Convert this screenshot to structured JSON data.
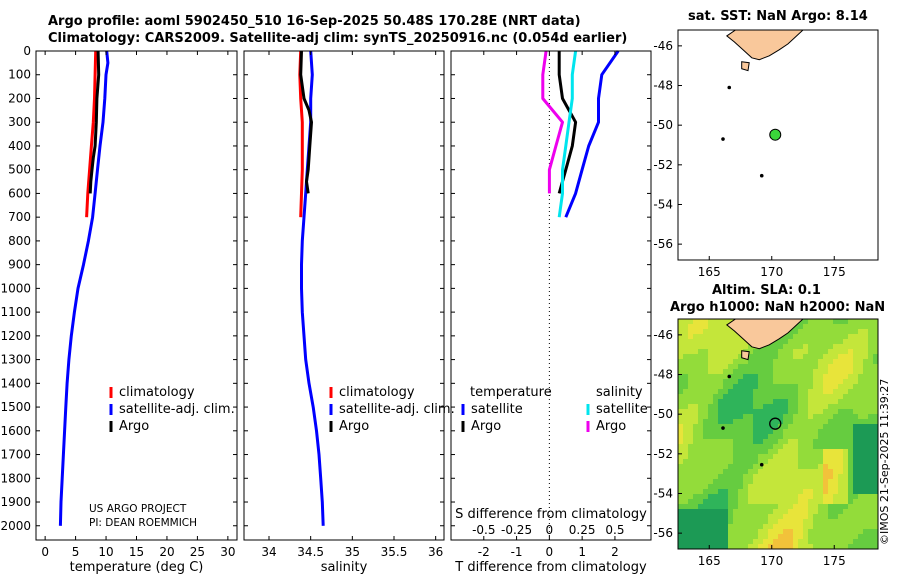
{
  "titles": {
    "line1": "Argo profile: aoml 5902450_510 16-Sep-2025 50.48S 170.28E (NRT data)",
    "line2": "Climatology: CARS2009. Satellite-adj clim: synTS_20250916.nc (0.054d earlier)",
    "map_sst": "sat. SST: NaN Argo: 8.14",
    "map_alt1": "Altim. SLA: 0.1",
    "map_alt2": "Argo h1000: NaN h2000: NaN"
  },
  "timestamp": "©IMOS 21-Sep-2025 11:39:27",
  "credits": {
    "line1": "US ARGO PROJECT",
    "line2": "PI: DEAN ROEMMICH"
  },
  "legends": {
    "temperature": [
      "climatology",
      "satellite-adj. clim.",
      "Argo"
    ],
    "salinity": [
      "climatology",
      "satellite-adj. clim.",
      "Argo"
    ],
    "difference": {
      "temp_header": "temperature",
      "sal_header": "salinity",
      "temp_items": [
        "satellite",
        "Argo"
      ],
      "sal_items": [
        "satellite",
        "Argo"
      ]
    }
  },
  "colors": {
    "climatology": "#ff0000",
    "satellite": "#0000ff",
    "argo": "#000000",
    "s_satellite": "#00e5ee",
    "s_argo": "#ee00ee",
    "land": "#f9c89b",
    "marker": "#3ad63a"
  },
  "chart_data": [
    {
      "type": "line",
      "name": "temperature",
      "xlabel": "temperature (deg C)",
      "xlim": [
        -1.5,
        31.5
      ],
      "xticks": [
        0,
        5,
        10,
        15,
        20,
        25,
        30
      ],
      "ylim": [
        2060,
        0
      ],
      "yticks": [
        0,
        100,
        200,
        300,
        400,
        500,
        600,
        700,
        800,
        900,
        1000,
        1100,
        1200,
        1300,
        1400,
        1500,
        1600,
        1700,
        1800,
        1900,
        2000
      ],
      "series": [
        {
          "name": "climatology",
          "color": "#ff0000",
          "points": [
            [
              8.3,
              0
            ],
            [
              8.2,
              100
            ],
            [
              8.1,
              200
            ],
            [
              7.9,
              300
            ],
            [
              7.6,
              400
            ],
            [
              7.3,
              500
            ],
            [
              7.0,
              600
            ],
            [
              6.9,
              650
            ],
            [
              6.8,
              700
            ]
          ]
        },
        {
          "name": "satellite-adj. clim.",
          "color": "#0000ff",
          "points": [
            [
              10.1,
              0
            ],
            [
              10.3,
              50
            ],
            [
              10.0,
              100
            ],
            [
              9.8,
              200
            ],
            [
              9.5,
              300
            ],
            [
              9.0,
              400
            ],
            [
              8.6,
              500
            ],
            [
              8.2,
              600
            ],
            [
              7.8,
              700
            ],
            [
              7.1,
              800
            ],
            [
              6.3,
              900
            ],
            [
              5.4,
              1000
            ],
            [
              4.8,
              1100
            ],
            [
              4.3,
              1200
            ],
            [
              3.9,
              1300
            ],
            [
              3.6,
              1400
            ],
            [
              3.4,
              1500
            ],
            [
              3.2,
              1600
            ],
            [
              3.0,
              1700
            ],
            [
              2.8,
              1800
            ],
            [
              2.6,
              1900
            ],
            [
              2.5,
              2000
            ]
          ]
        },
        {
          "name": "Argo",
          "color": "#000000",
          "points": [
            [
              8.7,
              0
            ],
            [
              8.8,
              100
            ],
            [
              8.5,
              200
            ],
            [
              8.4,
              300
            ],
            [
              8.2,
              400
            ],
            [
              7.9,
              450
            ],
            [
              7.7,
              500
            ],
            [
              7.5,
              550
            ],
            [
              7.4,
              600
            ]
          ]
        }
      ]
    },
    {
      "type": "line",
      "name": "salinity",
      "xlabel": "salinity",
      "xlim": [
        33.7,
        36.1
      ],
      "xticks": [
        34,
        34.5,
        35,
        35.5,
        36
      ],
      "ylim": [
        2060,
        0
      ],
      "series": [
        {
          "name": "climatology",
          "color": "#ff0000",
          "points": [
            [
              34.38,
              0
            ],
            [
              34.37,
              100
            ],
            [
              34.38,
              200
            ],
            [
              34.4,
              300
            ],
            [
              34.4,
              400
            ],
            [
              34.4,
              500
            ],
            [
              34.39,
              600
            ],
            [
              34.38,
              700
            ]
          ]
        },
        {
          "name": "satellite-adj. clim.",
          "color": "#0000ff",
          "points": [
            [
              34.5,
              0
            ],
            [
              34.52,
              100
            ],
            [
              34.5,
              200
            ],
            [
              34.5,
              300
            ],
            [
              34.48,
              400
            ],
            [
              34.46,
              500
            ],
            [
              34.44,
              600
            ],
            [
              34.42,
              700
            ],
            [
              34.4,
              800
            ],
            [
              34.39,
              900
            ],
            [
              34.39,
              1000
            ],
            [
              34.4,
              1100
            ],
            [
              34.42,
              1200
            ],
            [
              34.44,
              1300
            ],
            [
              34.48,
              1400
            ],
            [
              34.53,
              1500
            ],
            [
              34.57,
              1600
            ],
            [
              34.6,
              1700
            ],
            [
              34.62,
              1800
            ],
            [
              34.64,
              1900
            ],
            [
              34.65,
              2000
            ]
          ]
        },
        {
          "name": "Argo",
          "color": "#000000",
          "points": [
            [
              34.39,
              0
            ],
            [
              34.38,
              100
            ],
            [
              34.42,
              200
            ],
            [
              34.48,
              250
            ],
            [
              34.51,
              300
            ],
            [
              34.49,
              400
            ],
            [
              34.47,
              500
            ],
            [
              34.45,
              550
            ],
            [
              34.47,
              600
            ]
          ]
        }
      ]
    },
    {
      "type": "line",
      "name": "difference",
      "xlabel": "T difference from climatology",
      "xlabel_top": "S difference from climatology",
      "xlim": [
        -3,
        3.1
      ],
      "xticks": [
        -2,
        -1,
        0,
        1,
        2
      ],
      "top_ticks": [
        "-0.5",
        "-0.25",
        "0",
        "0.25",
        "0.5"
      ],
      "top_tick_positions": [
        -2,
        -1,
        0,
        1,
        2
      ],
      "ylim": [
        2060,
        0
      ],
      "series": [
        {
          "name": "temperature satellite",
          "color": "#0000ff",
          "points": [
            [
              2.1,
              0
            ],
            [
              1.6,
              100
            ],
            [
              1.5,
              200
            ],
            [
              1.5,
              300
            ],
            [
              1.2,
              400
            ],
            [
              1.0,
              500
            ],
            [
              0.8,
              600
            ],
            [
              0.5,
              700
            ]
          ]
        },
        {
          "name": "temperature Argo",
          "color": "#000000",
          "points": [
            [
              0.3,
              0
            ],
            [
              0.3,
              100
            ],
            [
              0.4,
              200
            ],
            [
              0.8,
              300
            ],
            [
              0.7,
              400
            ],
            [
              0.5,
              500
            ],
            [
              0.3,
              600
            ]
          ]
        },
        {
          "name": "salinity satellite",
          "color": "#00e5ee",
          "points": [
            [
              0.8,
              0
            ],
            [
              0.7,
              100
            ],
            [
              0.7,
              200
            ],
            [
              0.6,
              300
            ],
            [
              0.5,
              400
            ],
            [
              0.4,
              500
            ],
            [
              0.4,
              600
            ],
            [
              0.3,
              700
            ]
          ]
        },
        {
          "name": "salinity Argo",
          "color": "#ee00ee",
          "points": [
            [
              -0.1,
              0
            ],
            [
              -0.2,
              100
            ],
            [
              -0.2,
              200
            ],
            [
              0.4,
              300
            ],
            [
              0.2,
              400
            ],
            [
              0.0,
              500
            ],
            [
              0.0,
              600
            ]
          ]
        }
      ]
    },
    {
      "type": "map",
      "name": "sst-map",
      "xlim": [
        162.5,
        178.5
      ],
      "ylim": [
        -56.8,
        -45.2
      ],
      "xticks": [
        165,
        170,
        175
      ],
      "yticks": [
        -46,
        -48,
        -50,
        -52,
        -54,
        -56
      ],
      "argo_position": [
        170.28,
        -50.48
      ]
    },
    {
      "type": "heatmap",
      "name": "altimetry-map",
      "xlim": [
        162.5,
        178.5
      ],
      "ylim": [
        -56.8,
        -45.2
      ],
      "xticks": [
        165,
        170,
        175
      ],
      "yticks": [
        -46,
        -48,
        -50,
        -52,
        -54,
        -56
      ],
      "argo_position": [
        170.28,
        -50.48
      ]
    }
  ]
}
